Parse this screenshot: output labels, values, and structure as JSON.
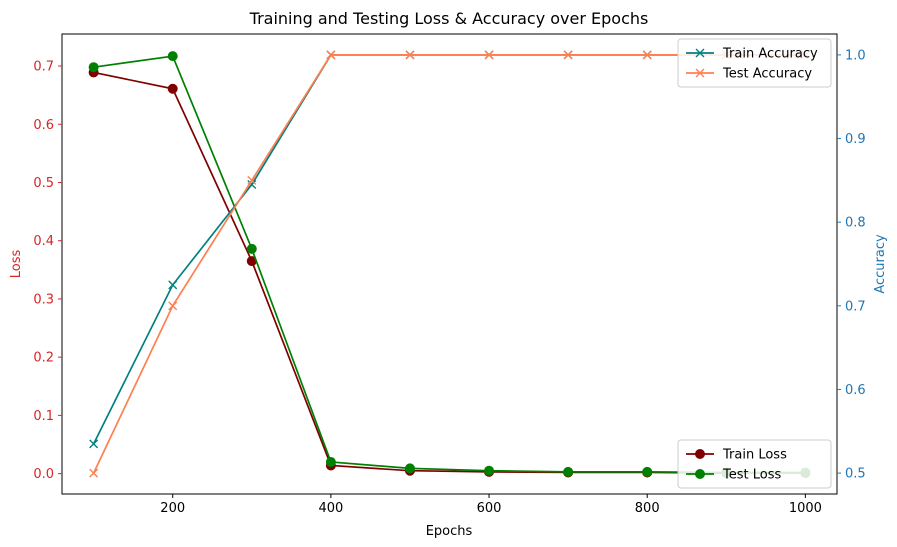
{
  "chart_data": {
    "type": "line",
    "title": "Training and Testing Loss & Accuracy over Epochs",
    "xlabel": "Epochs",
    "xlim": [
      60,
      1040
    ],
    "xticks": [
      200,
      400,
      600,
      800,
      1000
    ],
    "x": [
      100,
      200,
      300,
      400,
      500,
      600,
      700,
      800,
      900,
      1000
    ],
    "left_axis": {
      "label": "Loss",
      "color": "#d62728",
      "ylim": [
        -0.035,
        0.755
      ],
      "ticks": [
        "0.0",
        "0.1",
        "0.2",
        "0.3",
        "0.4",
        "0.5",
        "0.6",
        "0.7"
      ]
    },
    "right_axis": {
      "label": "Accuracy",
      "color": "#1f77b4",
      "ylim": [
        0.475,
        1.025
      ],
      "ticks": [
        "0.5",
        "0.6",
        "0.7",
        "0.8",
        "0.9",
        "1.0"
      ]
    },
    "series": [
      {
        "name": "Train Loss",
        "axis": "left",
        "color": "#800000",
        "marker": "circle",
        "values": [
          0.689,
          0.661,
          0.365,
          0.014,
          0.005,
          0.003,
          0.002,
          0.002,
          0.001,
          0.001
        ]
      },
      {
        "name": "Test Loss",
        "axis": "left",
        "color": "#008000",
        "marker": "circle",
        "values": [
          0.698,
          0.717,
          0.386,
          0.02,
          0.009,
          0.005,
          0.003,
          0.003,
          0.002,
          0.002
        ]
      },
      {
        "name": "Train Accuracy",
        "axis": "right",
        "color": "#008080",
        "marker": "x",
        "values": [
          0.535,
          0.725,
          0.845,
          1.0,
          1.0,
          1.0,
          1.0,
          1.0,
          1.0,
          1.0
        ]
      },
      {
        "name": "Test Accuracy",
        "axis": "right",
        "color": "#ff7f50",
        "marker": "x",
        "values": [
          0.5,
          0.7,
          0.85,
          1.0,
          1.0,
          1.0,
          1.0,
          1.0,
          1.0,
          1.0
        ]
      }
    ],
    "legends": [
      {
        "placement": "top-right",
        "entries": [
          "Train Accuracy",
          "Test Accuracy"
        ]
      },
      {
        "placement": "bottom-right",
        "entries": [
          "Train Loss",
          "Test Loss"
        ]
      }
    ]
  }
}
